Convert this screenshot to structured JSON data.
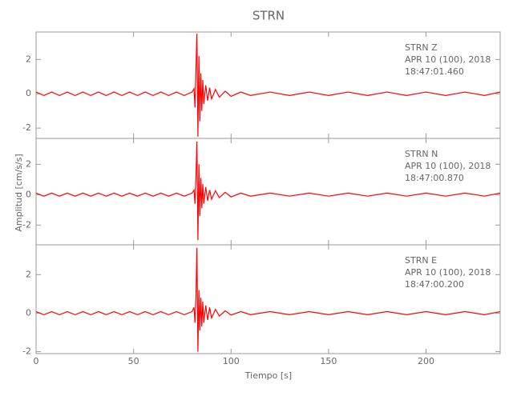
{
  "figure": {
    "title": "STRN",
    "ylabel": "Amplitud [cm/s/s]",
    "xlabel": "Tiempo [s]"
  },
  "chart_data": [
    {
      "type": "line",
      "annotations": [
        "STRN   Z",
        "APR 10 (100), 2018",
        "18:47:01.460"
      ],
      "color": "#ff0000",
      "xlim": [
        0,
        238
      ],
      "xticks": [
        0,
        50,
        100,
        150,
        200
      ],
      "ylim": [
        -2.6,
        3.6
      ],
      "yticks": [
        -2,
        0,
        2
      ],
      "x": [
        0,
        4,
        8,
        12,
        16,
        20,
        24,
        28,
        32,
        36,
        40,
        44,
        48,
        52,
        56,
        60,
        64,
        68,
        72,
        76,
        80,
        81,
        81.5,
        82,
        82.5,
        83,
        83.5,
        84,
        84.5,
        85,
        85.5,
        86,
        87,
        88,
        89,
        90,
        92,
        94,
        97,
        100,
        105,
        110,
        120,
        130,
        140,
        150,
        160,
        170,
        180,
        190,
        200,
        210,
        220,
        230,
        238
      ],
      "values": [
        0.1,
        -0.1,
        0.1,
        -0.1,
        0.1,
        -0.1,
        0.1,
        -0.1,
        0.1,
        -0.1,
        0.1,
        -0.1,
        0.1,
        -0.1,
        0.1,
        -0.1,
        0.1,
        -0.1,
        0.1,
        -0.1,
        0.1,
        0.3,
        -0.8,
        1.5,
        3.5,
        -2.5,
        2.2,
        -1.6,
        1.2,
        -1.0,
        0.8,
        -0.6,
        0.5,
        -0.4,
        0.35,
        -0.3,
        0.25,
        -0.2,
        0.15,
        -0.15,
        0.1,
        -0.1,
        0.1,
        -0.1,
        0.1,
        -0.1,
        0.1,
        -0.1,
        0.1,
        -0.1,
        0.1,
        -0.1,
        0.1,
        -0.1,
        0.1
      ]
    },
    {
      "type": "line",
      "annotations": [
        "STRN   N",
        "APR 10 (100), 2018",
        "18:47:00.870"
      ],
      "color": "#ff0000",
      "xlim": [
        0,
        238
      ],
      "xticks": [
        0,
        50,
        100,
        150,
        200
      ],
      "ylim": [
        -3.3,
        3.7
      ],
      "yticks": [
        -2,
        0,
        2
      ],
      "x": [
        0,
        4,
        8,
        12,
        16,
        20,
        24,
        28,
        32,
        36,
        40,
        44,
        48,
        52,
        56,
        60,
        64,
        68,
        72,
        76,
        80,
        81,
        81.5,
        82,
        82.5,
        83,
        83.5,
        84,
        84.5,
        85,
        85.5,
        86,
        87,
        88,
        89,
        90,
        92,
        94,
        97,
        100,
        105,
        110,
        120,
        130,
        140,
        150,
        160,
        170,
        180,
        190,
        200,
        210,
        220,
        230,
        238
      ],
      "values": [
        0.1,
        -0.1,
        0.1,
        -0.1,
        0.1,
        -0.1,
        0.1,
        -0.1,
        0.1,
        -0.1,
        0.1,
        -0.1,
        0.1,
        -0.1,
        0.1,
        -0.1,
        0.1,
        -0.1,
        0.1,
        -0.1,
        0.1,
        0.3,
        -0.6,
        1.2,
        3.5,
        -3.0,
        2.0,
        -1.4,
        1.1,
        -0.9,
        0.7,
        -0.6,
        0.5,
        -0.4,
        0.3,
        -0.3,
        0.25,
        -0.2,
        0.15,
        -0.15,
        0.1,
        -0.1,
        0.1,
        -0.1,
        0.1,
        -0.1,
        0.1,
        -0.1,
        0.1,
        -0.1,
        0.1,
        -0.1,
        0.1,
        -0.1,
        0.1
      ]
    },
    {
      "type": "line",
      "annotations": [
        "STRN   E",
        "APR 10 (100), 2018",
        "18:47:00.200"
      ],
      "color": "#ff0000",
      "xlim": [
        0,
        238
      ],
      "xticks": [
        0,
        50,
        100,
        150,
        200
      ],
      "ylim": [
        -2.1,
        3.55
      ],
      "yticks": [
        -2,
        0,
        2
      ],
      "x": [
        0,
        4,
        8,
        12,
        16,
        20,
        24,
        28,
        32,
        36,
        40,
        44,
        48,
        52,
        56,
        60,
        64,
        68,
        72,
        76,
        80,
        81,
        81.5,
        82,
        82.5,
        83,
        83.5,
        84,
        84.5,
        85,
        85.5,
        86,
        87,
        88,
        89,
        90,
        92,
        94,
        97,
        100,
        105,
        110,
        120,
        130,
        140,
        150,
        160,
        170,
        180,
        190,
        200,
        210,
        220,
        230,
        238
      ],
      "values": [
        0.08,
        -0.08,
        0.08,
        -0.08,
        0.08,
        -0.08,
        0.08,
        -0.08,
        0.08,
        -0.08,
        0.08,
        -0.08,
        0.08,
        -0.08,
        0.08,
        -0.08,
        0.08,
        -0.08,
        0.08,
        -0.08,
        0.08,
        0.3,
        -0.5,
        0.9,
        3.4,
        -2.0,
        1.2,
        -0.9,
        0.8,
        -0.7,
        0.6,
        -0.5,
        0.4,
        -0.35,
        0.3,
        -0.25,
        0.2,
        -0.15,
        0.12,
        -0.1,
        0.08,
        -0.08,
        0.08,
        -0.08,
        0.08,
        -0.08,
        0.08,
        -0.08,
        0.08,
        -0.08,
        0.08,
        -0.08,
        0.08,
        -0.08,
        0.08
      ]
    }
  ]
}
